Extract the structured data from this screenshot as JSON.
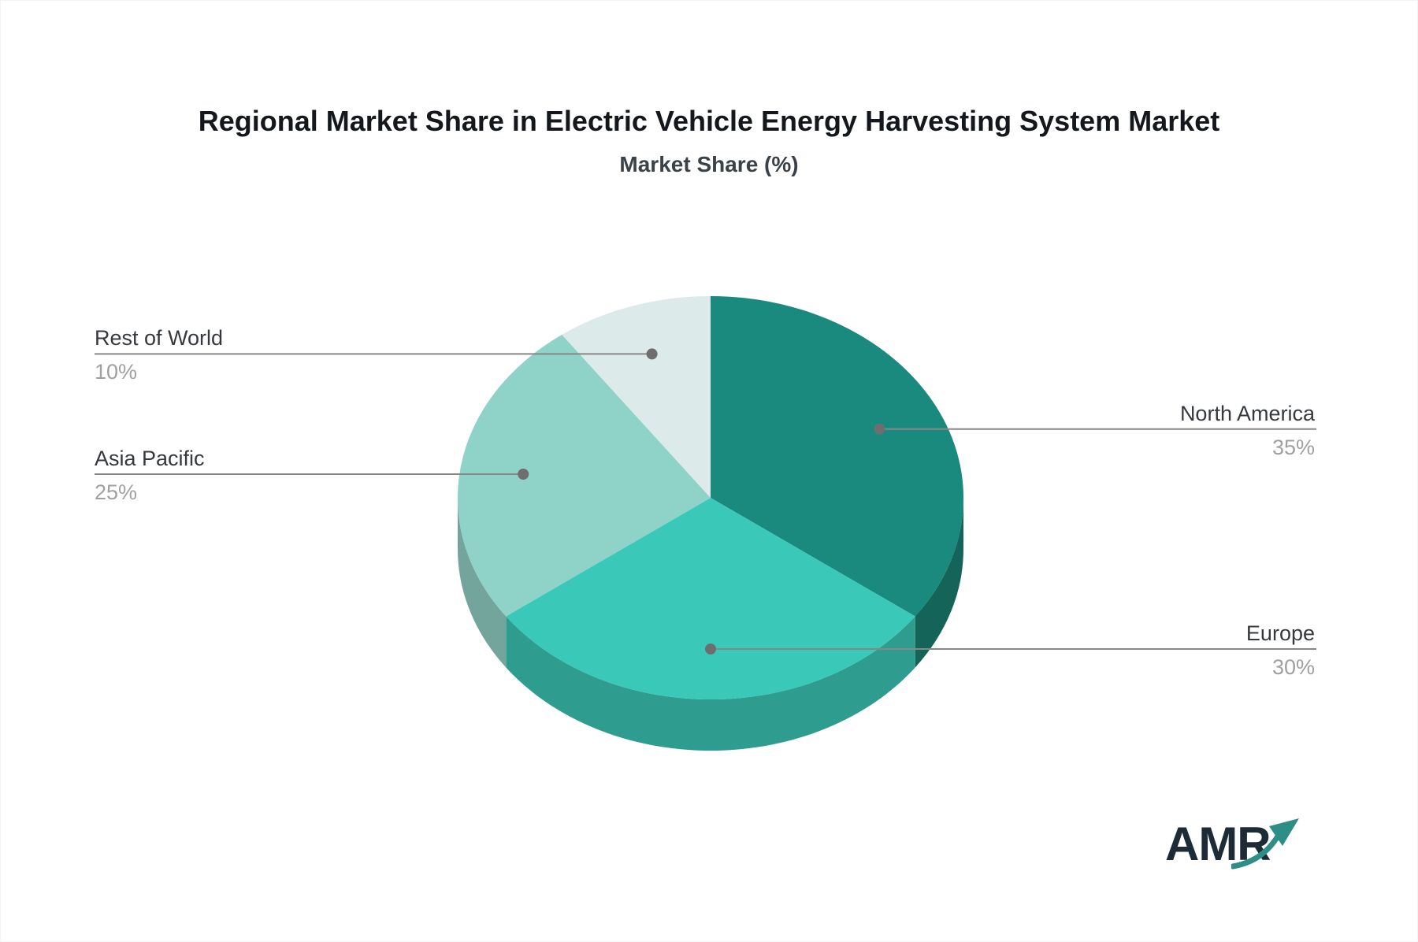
{
  "header": {
    "title": "Regional Market Share in Electric Vehicle Energy Harvesting System Market",
    "subtitle": "Market Share (%)"
  },
  "chart_data": {
    "type": "pie",
    "style": "3d-pie",
    "unit": "%",
    "title": "Regional Market Share in Electric Vehicle Energy Harvesting System Market",
    "subtitle": "Market Share (%)",
    "start_angle_deg": 0,
    "direction": "clockwise",
    "legend_position": "none",
    "slices": [
      {
        "label": "North America",
        "value": 35,
        "pct_label": "35%",
        "color": "#1a8a7e",
        "side_color": "#15645a",
        "label_side": "right"
      },
      {
        "label": "Europe",
        "value": 30,
        "pct_label": "30%",
        "color": "#3ac9b8",
        "side_color": "#2e9c8f",
        "label_side": "right"
      },
      {
        "label": "Asia Pacific",
        "value": 25,
        "pct_label": "25%",
        "color": "#8fd3c8",
        "side_color": "#74a59d",
        "label_side": "left"
      },
      {
        "label": "Rest of World",
        "value": 10,
        "pct_label": "10%",
        "color": "#dcebe9",
        "side_color": null,
        "label_side": "left"
      }
    ],
    "leader_line_color": "#878787",
    "leader_dot_color": "#6e6e6e",
    "label_text_color": "#35393d",
    "pct_text_color": "#a0a0a0"
  },
  "logo": {
    "text": "AMR",
    "text_color": "#1c2b35",
    "arrow_color": "#2e8d87"
  }
}
